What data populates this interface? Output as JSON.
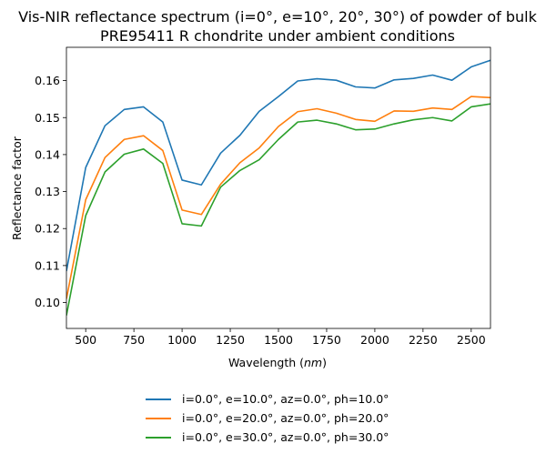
{
  "chart_data": {
    "type": "line",
    "title": "Vis-NIR reflectance spectrum (i=0°, e=10°, 20°, 30°) of powder of bulk\nPRE95411 R chondrite under ambient conditions",
    "xlabel": "Wavelength (nm)",
    "ylabel": "Reflectance factor",
    "xlim": [
      400,
      2600
    ],
    "ylim": [
      0.093,
      0.169
    ],
    "xticks": [
      "500",
      "750",
      "1000",
      "1250",
      "1500",
      "1750",
      "2000",
      "2250",
      "2500"
    ],
    "yticks": [
      "0.10",
      "0.11",
      "0.12",
      "0.13",
      "0.14",
      "0.15",
      "0.16"
    ],
    "legend_position": "below",
    "x": [
      400,
      500,
      600,
      700,
      800,
      900,
      1000,
      1100,
      1200,
      1300,
      1400,
      1500,
      1600,
      1700,
      1800,
      1900,
      2000,
      2100,
      2200,
      2300,
      2400,
      2500,
      2600
    ],
    "series": [
      {
        "name": "i=0.0°, e=10.0°, az=0.0°, ph=10.0°",
        "color": "#1f77b4",
        "values": [
          0.1085,
          0.1365,
          0.1478,
          0.1522,
          0.1529,
          0.1488,
          0.1331,
          0.1318,
          0.1404,
          0.1452,
          0.1517,
          0.1557,
          0.1599,
          0.1605,
          0.1601,
          0.1583,
          0.158,
          0.1602,
          0.1606,
          0.1615,
          0.1601,
          0.1637,
          0.1655
        ]
      },
      {
        "name": "i=0.0°, e=20.0°, az=0.0°, ph=20.0°",
        "color": "#ff7f0e",
        "values": [
          0.101,
          0.1278,
          0.1392,
          0.1441,
          0.1451,
          0.1411,
          0.125,
          0.1238,
          0.132,
          0.1378,
          0.1418,
          0.1476,
          0.1516,
          0.1524,
          0.1512,
          0.1495,
          0.149,
          0.1518,
          0.1517,
          0.1526,
          0.1522,
          0.1557,
          0.1554
        ]
      },
      {
        "name": "i=0.0°, e=30.0°, az=0.0°, ph=30.0°",
        "color": "#2ca02c",
        "values": [
          0.0965,
          0.1235,
          0.1353,
          0.1401,
          0.1415,
          0.1376,
          0.1213,
          0.1207,
          0.1312,
          0.1357,
          0.1386,
          0.1441,
          0.1488,
          0.1493,
          0.1483,
          0.1467,
          0.1469,
          0.1483,
          0.1494,
          0.15,
          0.1491,
          0.1529,
          0.1537
        ]
      }
    ]
  }
}
